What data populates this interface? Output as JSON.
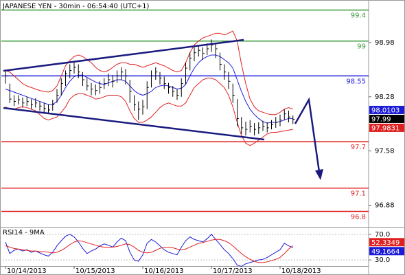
{
  "chart_data": [
    {
      "type": "ohlc",
      "title": "JAPANESE YEN - 30min - 06:54:40 (UTC+1)",
      "categories": [
        "10/14/2013",
        null,
        null,
        null,
        null,
        null,
        null,
        null,
        null,
        null,
        null,
        null,
        null,
        null,
        null,
        null,
        "10/15/2013",
        null,
        null,
        null,
        null,
        null,
        null,
        null,
        null,
        null,
        null,
        null,
        null,
        null,
        null,
        null,
        "10/16/2013",
        null,
        null,
        null,
        null,
        null,
        null,
        null,
        null,
        null,
        null,
        null,
        null,
        null,
        null,
        null,
        "10/17/2013",
        null,
        null,
        null,
        null,
        null,
        null,
        null,
        null,
        null,
        null,
        null,
        null,
        null,
        null,
        null,
        "10/18/2013",
        null,
        null,
        null
      ],
      "high": [
        98.62,
        98.45,
        98.3,
        98.3,
        98.27,
        98.28,
        98.25,
        98.26,
        98.22,
        98.2,
        98.18,
        98.24,
        98.38,
        98.52,
        98.62,
        98.7,
        98.72,
        98.7,
        98.6,
        98.52,
        98.46,
        98.44,
        98.48,
        98.52,
        98.58,
        98.56,
        98.62,
        98.66,
        98.64,
        98.5,
        98.3,
        98.22,
        98.24,
        98.48,
        98.62,
        98.66,
        98.6,
        98.54,
        98.46,
        98.42,
        98.38,
        98.52,
        98.72,
        98.85,
        98.92,
        98.95,
        98.92,
        98.97,
        99.02,
        98.98,
        98.85,
        98.7,
        98.6,
        98.45,
        98.25,
        98.02,
        97.96,
        97.98,
        97.94,
        97.95,
        97.97,
        97.95,
        97.98,
        98.02,
        98.05,
        98.12,
        98.1,
        98.04
      ],
      "low": [
        98.45,
        98.2,
        98.16,
        98.18,
        98.14,
        98.16,
        98.12,
        98.14,
        98.1,
        98.08,
        98.06,
        98.1,
        98.2,
        98.3,
        98.42,
        98.52,
        98.58,
        98.52,
        98.42,
        98.36,
        98.3,
        98.3,
        98.32,
        98.38,
        98.42,
        98.4,
        98.46,
        98.5,
        98.44,
        98.2,
        98.1,
        97.98,
        98.05,
        98.12,
        98.4,
        98.5,
        98.44,
        98.38,
        98.32,
        98.28,
        98.24,
        98.28,
        98.44,
        98.62,
        98.74,
        98.8,
        98.76,
        98.82,
        98.86,
        98.78,
        98.62,
        98.5,
        98.38,
        98.2,
        97.9,
        97.8,
        97.78,
        97.82,
        97.78,
        97.8,
        97.84,
        97.82,
        97.86,
        97.88,
        97.9,
        97.98,
        97.95,
        97.93
      ],
      "close": [
        98.55,
        98.25,
        98.22,
        98.24,
        98.2,
        98.22,
        98.18,
        98.2,
        98.16,
        98.13,
        98.11,
        98.18,
        98.3,
        98.45,
        98.58,
        98.62,
        98.66,
        98.6,
        98.5,
        98.42,
        98.38,
        98.36,
        98.4,
        98.45,
        98.5,
        98.48,
        98.55,
        98.6,
        98.55,
        98.35,
        98.18,
        98.12,
        98.15,
        98.4,
        98.55,
        98.6,
        98.52,
        98.45,
        98.4,
        98.35,
        98.3,
        98.45,
        98.65,
        98.78,
        98.85,
        98.88,
        98.84,
        98.9,
        98.95,
        98.9,
        98.7,
        98.6,
        98.48,
        98.3,
        98.0,
        97.88,
        97.86,
        97.9,
        97.86,
        97.88,
        97.9,
        97.88,
        97.92,
        97.95,
        97.98,
        98.06,
        98.02,
        97.99
      ],
      "upper_band": [
        98.62,
        98.6,
        98.55,
        98.5,
        98.45,
        98.42,
        98.4,
        98.38,
        98.36,
        98.35,
        98.34,
        98.36,
        98.42,
        98.55,
        98.68,
        98.75,
        98.8,
        98.82,
        98.8,
        98.76,
        98.72,
        98.66,
        98.62,
        98.6,
        98.62,
        98.66,
        98.7,
        98.72,
        98.72,
        98.7,
        98.7,
        98.68,
        98.66,
        98.68,
        98.7,
        98.72,
        98.7,
        98.68,
        98.65,
        98.62,
        98.6,
        98.62,
        98.72,
        98.85,
        98.95,
        99.0,
        99.04,
        99.06,
        99.08,
        99.1,
        99.1,
        99.08,
        99.1,
        99.13,
        99.0,
        98.7,
        98.45,
        98.25,
        98.15,
        98.1,
        98.08,
        98.06,
        98.05,
        98.05,
        98.08,
        98.12,
        98.14,
        98.12
      ],
      "middle_band": [
        98.38,
        98.36,
        98.34,
        98.32,
        98.3,
        98.28,
        98.26,
        98.24,
        98.22,
        98.2,
        98.18,
        98.18,
        98.22,
        98.3,
        98.4,
        98.48,
        98.54,
        98.56,
        98.56,
        98.53,
        98.5,
        98.47,
        98.45,
        98.44,
        98.46,
        98.48,
        98.5,
        98.5,
        98.48,
        98.42,
        98.36,
        98.32,
        98.3,
        98.32,
        98.35,
        98.4,
        98.42,
        98.43,
        98.42,
        98.4,
        98.38,
        98.39,
        98.44,
        98.55,
        98.65,
        98.72,
        98.77,
        98.8,
        98.82,
        98.82,
        98.8,
        98.76,
        98.72,
        98.65,
        98.5,
        98.35,
        98.22,
        98.12,
        98.05,
        98.0,
        97.96,
        97.94,
        97.95,
        97.95,
        97.96,
        97.98,
        98.0,
        98.0
      ],
      "lower_band": [
        98.15,
        98.12,
        98.12,
        98.14,
        98.15,
        98.14,
        98.12,
        98.1,
        98.05,
        98.0,
        97.98,
        98.0,
        98.02,
        98.08,
        98.15,
        98.25,
        98.3,
        98.32,
        98.32,
        98.3,
        98.28,
        98.25,
        98.26,
        98.28,
        98.3,
        98.3,
        98.3,
        98.28,
        98.22,
        98.1,
        98.0,
        97.95,
        97.95,
        97.98,
        98.02,
        98.08,
        98.14,
        98.18,
        98.2,
        98.18,
        98.16,
        98.16,
        98.2,
        98.3,
        98.4,
        98.45,
        98.5,
        98.52,
        98.52,
        98.5,
        98.45,
        98.4,
        98.3,
        98.15,
        97.95,
        97.78,
        97.68,
        97.65,
        97.68,
        97.72,
        97.76,
        97.8,
        97.82,
        97.82,
        97.83,
        97.84,
        97.85,
        97.86
      ],
      "bar_color": "#000000",
      "band_color": "#e02020",
      "middle_color": "#1c1cd8",
      "ylim": [
        96.6,
        99.53
      ],
      "yticks": [
        98.98,
        98.28,
        97.58,
        96.88
      ],
      "levels": [
        {
          "value": 99.4,
          "color": "#3a9a3a"
        },
        {
          "value": 99,
          "color": "#3a9a3a"
        },
        {
          "value": 98.55,
          "color": "#1c1cd8"
        },
        {
          "value": 97.7,
          "color": "#e02020"
        },
        {
          "value": 97.1,
          "color": "#e02020"
        },
        {
          "value": 96.8,
          "color": "#e02020"
        }
      ],
      "last_values": [
        {
          "value": 98.0103,
          "color": "#1c1cd8"
        },
        {
          "value": 97.99,
          "color": "#000000"
        },
        {
          "value": 97.9831,
          "color": "#e02020"
        }
      ]
    },
    {
      "type": "line",
      "title": "RSI14 - 9MA",
      "series": [
        {
          "color": "#1c1cd8",
          "values": [
            58,
            40,
            45,
            47,
            44,
            46,
            42,
            44,
            41,
            38,
            36,
            42,
            52,
            60,
            67,
            70,
            66,
            58,
            48,
            40,
            44,
            47,
            52,
            55,
            53,
            50,
            58,
            64,
            60,
            42,
            30,
            28,
            38,
            56,
            62,
            58,
            52,
            46,
            42,
            40,
            38,
            50,
            60,
            66,
            62,
            60,
            58,
            63,
            70,
            62,
            54,
            46,
            40,
            32,
            22,
            20,
            24,
            26,
            28,
            30,
            31,
            34,
            38,
            42,
            46,
            56,
            52,
            49.1664
          ]
        },
        {
          "color": "#e02020",
          "values": [
            52,
            50,
            48,
            47,
            46,
            45,
            44,
            44,
            43,
            43,
            42,
            41,
            42,
            45,
            49,
            54,
            58,
            60,
            59,
            57,
            55,
            53,
            51,
            50,
            50,
            50,
            51,
            53,
            55,
            54,
            50,
            45,
            42,
            41,
            42,
            45,
            48,
            50,
            50,
            49,
            47,
            46,
            47,
            50,
            53,
            56,
            57,
            59,
            61,
            62,
            62,
            60,
            57,
            52,
            46,
            40,
            35,
            31,
            28,
            26,
            26,
            27,
            29,
            31,
            34,
            40,
            47,
            52.3349
          ]
        }
      ],
      "ylim": [
        20.5,
        80.5
      ],
      "yticks": [
        {
          "value": 70,
          "label": "70.0"
        },
        {
          "value": 30,
          "label": "30.0"
        }
      ],
      "last_values": [
        {
          "value": 52.3349,
          "color": "#e02020"
        },
        {
          "value": 49.1664,
          "color": "#1c1cd8"
        }
      ]
    }
  ]
}
